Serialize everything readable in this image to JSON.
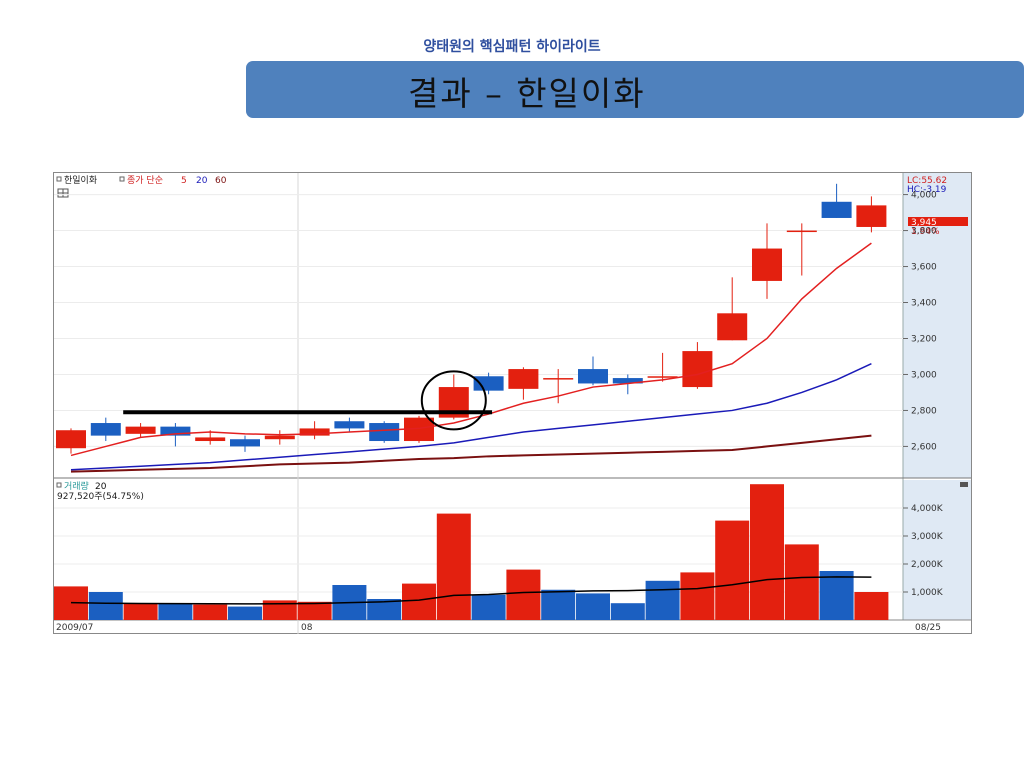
{
  "slide": {
    "subtitle": "양태원의 핵심패턴 하이라이트",
    "title": "결과 – 한일이화"
  },
  "chart_panel": {
    "stock_name": "한일이화",
    "ma_label": "종가 단순",
    "ma_periods": [
      "5",
      "20",
      "60"
    ],
    "lc_label": "LC:55.62",
    "hc_label": "HC:-3.19",
    "current_price_label": "3,945",
    "change_label": "1.94%",
    "volume_title": "거래량",
    "volume_period": "20",
    "volume_info": "927,520주(54.75%)",
    "x_label_left": "2009/07",
    "x_label_mid": "08",
    "x_label_right": "08/25"
  },
  "colors": {
    "up": "#e3200f",
    "down": "#1b5fc1",
    "ma5": "#e32020",
    "ma20": "#1a1ab8",
    "ma60": "#7a1010",
    "volume_ma": "#000000",
    "axis_bg": "#dfe9f4",
    "title_bar": "#4f81bd"
  },
  "chart_data": [
    {
      "type": "candlestick",
      "yticks": [
        4000,
        3800,
        3600,
        3400,
        3200,
        3000,
        2800,
        2600
      ],
      "ytick_labels": [
        "4,000",
        "3,800",
        "3,600",
        "3,400",
        "3,200",
        "3,000",
        "2,800",
        "2,600"
      ],
      "ylim": [
        2430,
        4120
      ],
      "candles": [
        {
          "o": 2590,
          "c": 2690,
          "h": 2700,
          "l": 2560
        },
        {
          "o": 2730,
          "c": 2660,
          "h": 2760,
          "l": 2630
        },
        {
          "o": 2670,
          "c": 2710,
          "h": 2730,
          "l": 2650
        },
        {
          "o": 2710,
          "c": 2660,
          "h": 2730,
          "l": 2600
        },
        {
          "o": 2630,
          "c": 2650,
          "h": 2690,
          "l": 2610
        },
        {
          "o": 2640,
          "c": 2600,
          "h": 2660,
          "l": 2570
        },
        {
          "o": 2640,
          "c": 2660,
          "h": 2690,
          "l": 2610
        },
        {
          "o": 2660,
          "c": 2700,
          "h": 2740,
          "l": 2640
        },
        {
          "o": 2740,
          "c": 2700,
          "h": 2760,
          "l": 2680
        },
        {
          "o": 2730,
          "c": 2630,
          "h": 2740,
          "l": 2620
        },
        {
          "o": 2630,
          "c": 2760,
          "h": 2770,
          "l": 2620
        },
        {
          "o": 2760,
          "c": 2930,
          "h": 3000,
          "l": 2750
        },
        {
          "o": 2990,
          "c": 2910,
          "h": 3010,
          "l": 2890
        },
        {
          "o": 2920,
          "c": 3030,
          "h": 3040,
          "l": 2860
        },
        {
          "o": 2980,
          "c": 2980,
          "h": 3030,
          "l": 2840
        },
        {
          "o": 3030,
          "c": 2950,
          "h": 3100,
          "l": 2940
        },
        {
          "o": 2980,
          "c": 2950,
          "h": 3000,
          "l": 2890
        },
        {
          "o": 2990,
          "c": 2990,
          "h": 3120,
          "l": 2960
        },
        {
          "o": 2930,
          "c": 3130,
          "h": 3180,
          "l": 2920
        },
        {
          "o": 3190,
          "c": 3340,
          "h": 3540,
          "l": 3190
        },
        {
          "o": 3520,
          "c": 3700,
          "h": 3840,
          "l": 3420
        },
        {
          "o": 3800,
          "c": 3800,
          "h": 3840,
          "l": 3550
        },
        {
          "o": 3960,
          "c": 3870,
          "h": 4060,
          "l": 3870
        },
        {
          "o": 3820,
          "c": 3940,
          "h": 3990,
          "l": 3790
        }
      ],
      "ma5": [
        2550,
        2600,
        2650,
        2670,
        2680,
        2670,
        2665,
        2670,
        2680,
        2690,
        2700,
        2730,
        2780,
        2840,
        2880,
        2930,
        2950,
        2970,
        3000,
        3060,
        3200,
        3420,
        3590,
        3730
      ],
      "ma20": [
        2470,
        2480,
        2490,
        2500,
        2510,
        2525,
        2540,
        2555,
        2570,
        2585,
        2600,
        2620,
        2650,
        2680,
        2700,
        2720,
        2740,
        2760,
        2780,
        2800,
        2840,
        2900,
        2970,
        3060
      ],
      "ma60": [
        2460,
        2465,
        2470,
        2475,
        2480,
        2490,
        2500,
        2505,
        2510,
        2520,
        2530,
        2535,
        2545,
        2550,
        2555,
        2560,
        2565,
        2570,
        2575,
        2580,
        2600,
        2620,
        2640,
        2660
      ],
      "support_line": {
        "level": 2790,
        "from_index": 1.5,
        "to_index": 12.1
      },
      "highlight_circle_index": 11
    },
    {
      "type": "bar",
      "title": "거래량",
      "yticks": [
        1000,
        2000,
        3000,
        4000
      ],
      "ytick_labels": [
        "1,000K",
        "2,000K",
        "3,000K",
        "4,000K"
      ],
      "ylim": [
        0,
        5000
      ],
      "values": [
        1200,
        1000,
        600,
        600,
        550,
        480,
        700,
        650,
        1250,
        750,
        1300,
        3800,
        900,
        1800,
        1080,
        950,
        600,
        1400,
        1700,
        3550,
        4850,
        2700,
        1750,
        1000
      ],
      "up": [
        true,
        false,
        true,
        false,
        true,
        false,
        true,
        true,
        false,
        false,
        true,
        true,
        false,
        true,
        false,
        false,
        false,
        false,
        true,
        true,
        true,
        true,
        false,
        true
      ],
      "ma": [
        620,
        600,
        590,
        585,
        580,
        575,
        580,
        590,
        620,
        650,
        710,
        880,
        910,
        980,
        1010,
        1040,
        1050,
        1080,
        1120,
        1260,
        1440,
        1520,
        1540,
        1530
      ]
    }
  ]
}
